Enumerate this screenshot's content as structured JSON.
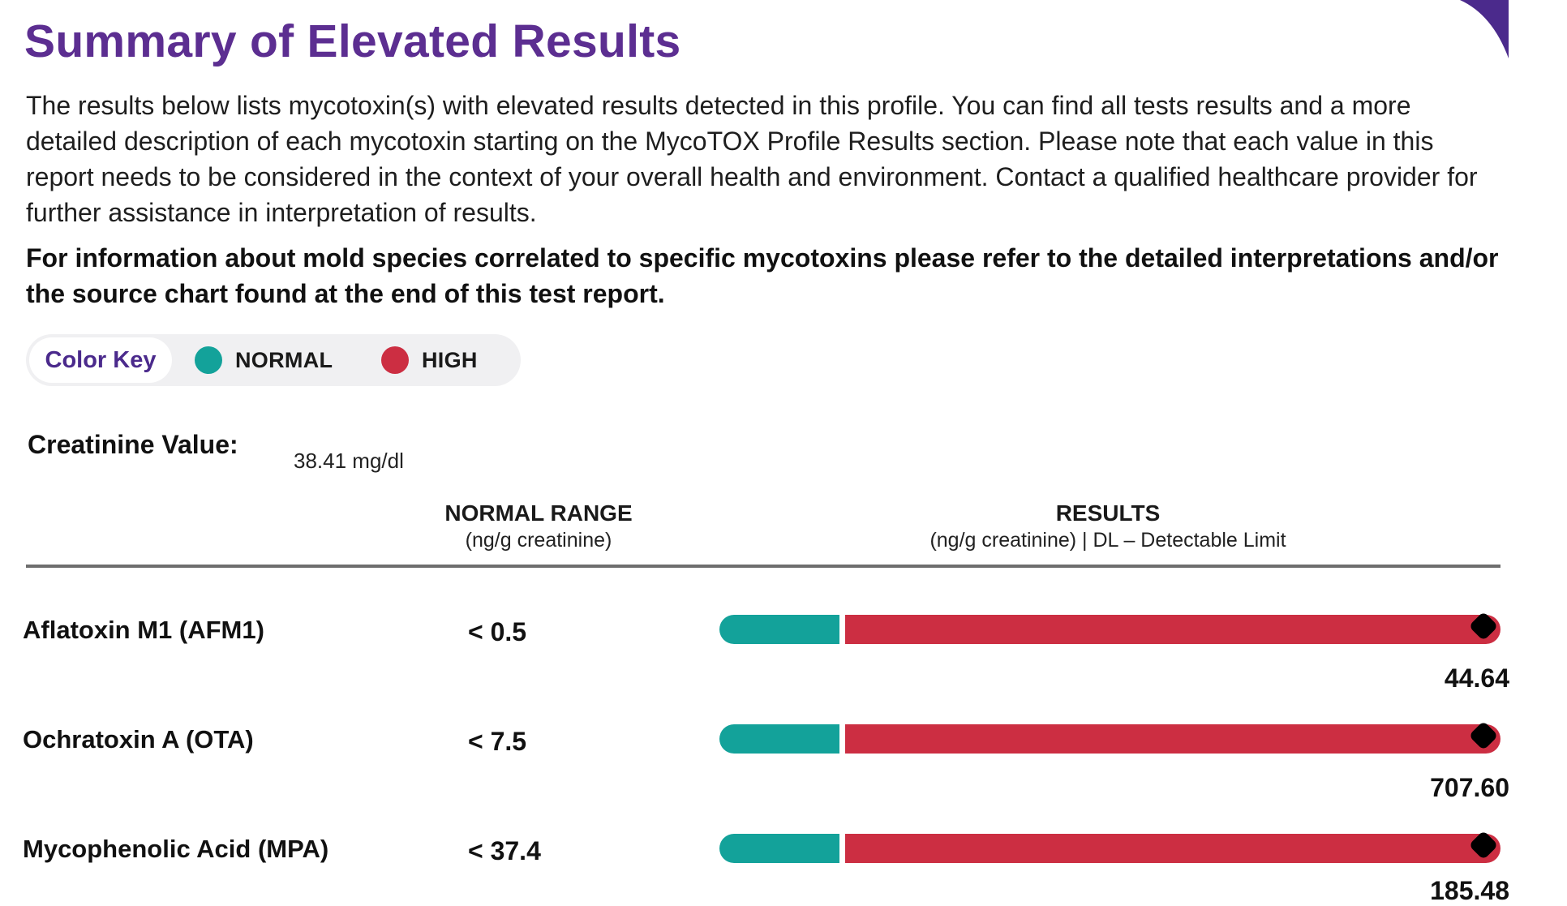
{
  "header": {
    "title": "Summary of Elevated Results"
  },
  "intro": {
    "paragraph": "The results below lists mycotoxin(s) with elevated results detected in this profile. You can find all tests results and a more detailed description of each mycotoxin starting on the MycoTOX Profile Results section. Please note that each value in this report needs to be considered in the context of your overall health and environment. Contact a qualified healthcare provider for further assistance in interpretation of results.",
    "note": "For information about mold species correlated to specific mycotoxins please refer to the detailed interpretations and/or the source chart found at the end of this test report."
  },
  "color_key": {
    "label": "Color Key",
    "normal_label": "NORMAL",
    "high_label": "HIGH"
  },
  "creatinine": {
    "label": "Creatinine Value:",
    "value": "38.41  mg/dl"
  },
  "columns": {
    "range_title": "NORMAL RANGE",
    "range_units": "(ng/g creatinine)",
    "results_title": "RESULTS",
    "results_units": "(ng/g creatinine) | DL – Detectable Limit"
  },
  "results": [
    {
      "name": "Aflatoxin M1 (AFM1)",
      "range": "< 0.5",
      "value": "44.64"
    },
    {
      "name": "Ochratoxin A (OTA)",
      "range": "< 7.5",
      "value": "707.60"
    },
    {
      "name": "Mycophenolic Acid (MPA)",
      "range": "< 37.4",
      "value": "185.48"
    }
  ],
  "colors": {
    "title_purple": "#5c2e91",
    "accent_purple": "#4b2a8c",
    "normal_teal": "#13a29a",
    "high_red": "#cc2e42",
    "marker": "#000000"
  }
}
